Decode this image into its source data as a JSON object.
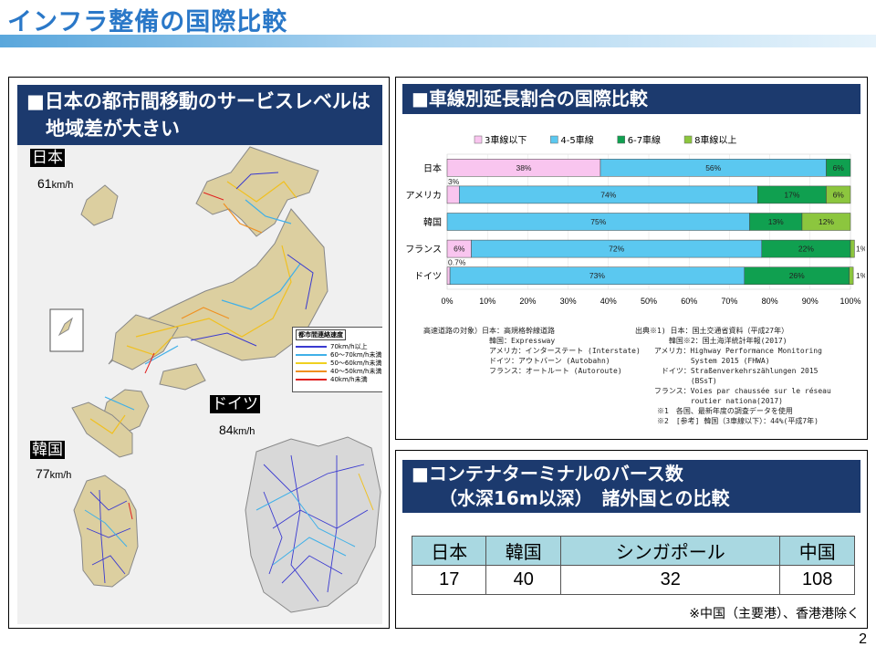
{
  "header": {
    "title": "インフラ整備の国際比較"
  },
  "left_panel": {
    "heading_line1": "■日本の都市間移動のサービスレベルは",
    "heading_line2": "　地域差が大きい",
    "japan": {
      "tag": "日本",
      "speed": "61",
      "unit": "km/h"
    },
    "germany": {
      "tag": "ドイツ",
      "speed": "84",
      "unit": "km/h"
    },
    "korea": {
      "tag": "韓国",
      "speed": "77",
      "unit": "km/h"
    },
    "legend": {
      "title": "都市間連絡速度",
      "items": [
        {
          "label": "70km/h以上",
          "color": "#3a3ad0"
        },
        {
          "label": "60〜70km/h未満",
          "color": "#3fb0e8"
        },
        {
          "label": "50〜60km/h未満",
          "color": "#f0d020"
        },
        {
          "label": "40〜50km/h未満",
          "color": "#f09020"
        },
        {
          "label": "40km/h未満",
          "color": "#e02020"
        }
      ]
    }
  },
  "chart_panel": {
    "heading": "■車線別延長割合の国際比較",
    "source_left": "高速道路の対象）日本：高規格幹線道路\n　　　　　　　　　韓国：Expressway\n　　　　　　　　　アメリカ：インターステート (Interstate)\n　　　　　　　　　ドイツ：アウトバーン (Autobahn)\n　　　　　　　　　フランス：オートルート (Autoroute)",
    "source_right": "出典※1) 日本：国土交通省資料（平成27年）\n　　　　 韓国※2：国土海洋統計年報(2017)\n　　 アメリカ：Highway Performance Monitoring\n　　　　　　　 System 2015 (FHWA)\n　　　 ドイツ：Straßenverkehrszählungen 2015\n　　　　　　　 (BSsT)\n　　 フランス：Voies par chaussée sur le réseau\n　　　　　　　 routier nationa(2017)\n　　　※1　各国、最新年度の調査データを使用\n　　　※2　[参考] 韓国（3車線以下）：44%(平成7年)"
  },
  "chart_data": {
    "type": "bar",
    "orientation": "horizontal",
    "stacked": true,
    "categories": [
      "日本",
      "アメリカ",
      "韓国",
      "フランス",
      "ドイツ"
    ],
    "series": [
      {
        "name": "3車線以下",
        "color": "#f9c5ef",
        "values": [
          38,
          3,
          0,
          6,
          0.7
        ],
        "labels": [
          "38%",
          "3%",
          "",
          "6%",
          "0.7%"
        ]
      },
      {
        "name": "4-5車線",
        "color": "#5bc8f0",
        "values": [
          56,
          74,
          75,
          72,
          73
        ],
        "labels": [
          "56%",
          "74%",
          "75%",
          "72%",
          "73%"
        ]
      },
      {
        "name": "6-7車線",
        "color": "#10a050",
        "values": [
          6,
          17,
          13,
          22,
          26
        ],
        "labels": [
          "6%",
          "17%",
          "13%",
          "22%",
          "26%"
        ]
      },
      {
        "name": "8車線以上",
        "color": "#8cc63e",
        "values": [
          0,
          6,
          12,
          1,
          1
        ],
        "labels": [
          "",
          "6%",
          "12%",
          "1%",
          "1%"
        ]
      }
    ],
    "xlim": [
      0,
      100
    ],
    "xticks": [
      "0%",
      "10%",
      "20%",
      "30%",
      "40%",
      "50%",
      "60%",
      "70%",
      "80%",
      "90%",
      "100%"
    ],
    "legend_position": "top"
  },
  "port_panel": {
    "heading_line1": "■コンテナターミナルのバース数",
    "heading_line2": "　　（水深16m以深）　諸外国との比較",
    "columns": [
      "日本",
      "韓国",
      "シンガポール",
      "中国"
    ],
    "values": [
      "17",
      "40",
      "32",
      "108"
    ],
    "note": "※中国（主要港）、香港港除く"
  },
  "page_number": "2"
}
